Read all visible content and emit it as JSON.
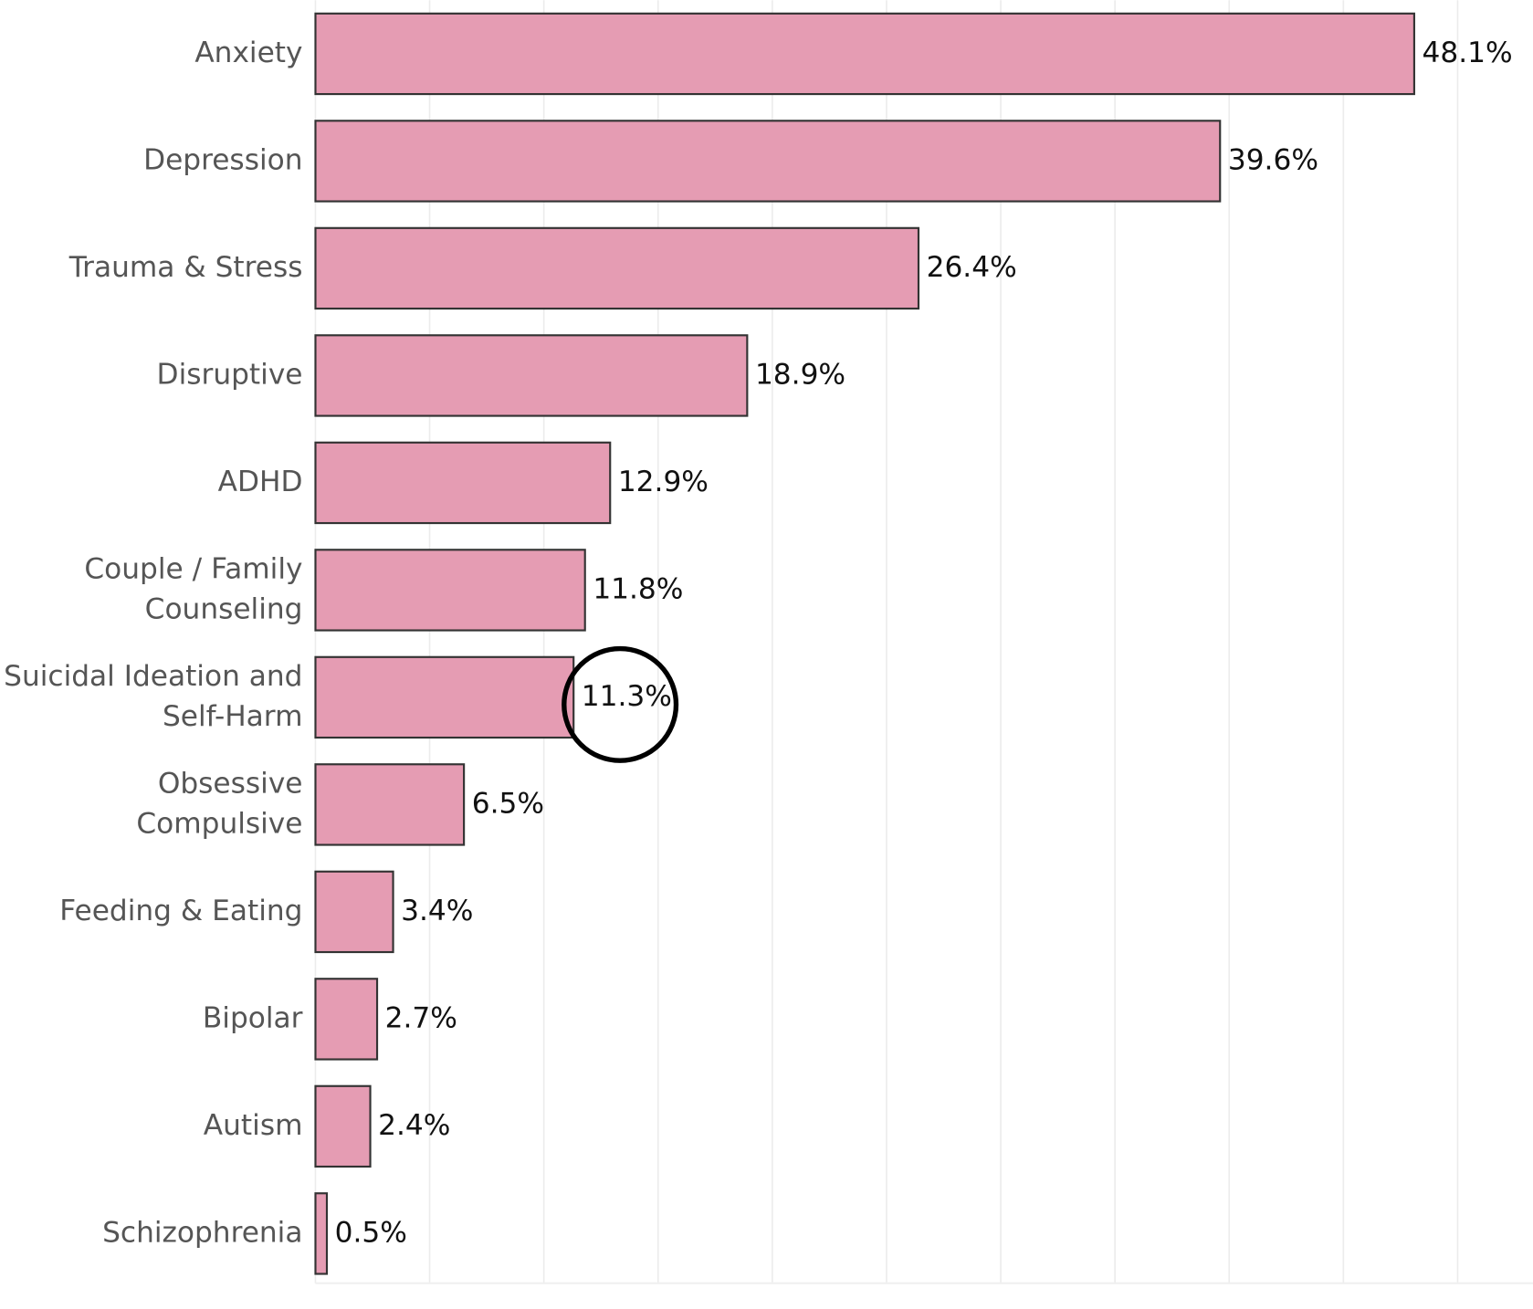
{
  "chart_data": {
    "type": "bar",
    "orientation": "horizontal",
    "categories": [
      "Anxiety",
      "Depression",
      "Trauma & Stress",
      "Disruptive",
      "ADHD",
      [
        "Couple / Family",
        "Counseling"
      ],
      [
        "Suicidal Ideation and",
        "Self-Harm"
      ],
      [
        "Obsessive",
        "Compulsive"
      ],
      "Feeding & Eating",
      "Bipolar",
      "Autism",
      "Schizophrenia"
    ],
    "values": [
      48.1,
      39.6,
      26.4,
      18.9,
      12.9,
      11.8,
      11.3,
      6.5,
      3.4,
      2.7,
      2.4,
      0.5
    ],
    "value_labels": [
      "48.1%",
      "39.6%",
      "26.4%",
      "18.9%",
      "12.9%",
      "11.8%",
      "11.3%",
      "6.5%",
      "3.4%",
      "2.7%",
      "2.4%",
      "0.5%"
    ],
    "color": "#e59cb3",
    "xlim": [
      0,
      53.3
    ],
    "xticks": [
      0,
      5,
      10,
      15,
      20,
      25,
      30,
      35,
      40,
      45,
      50
    ],
    "grid": true
  }
}
